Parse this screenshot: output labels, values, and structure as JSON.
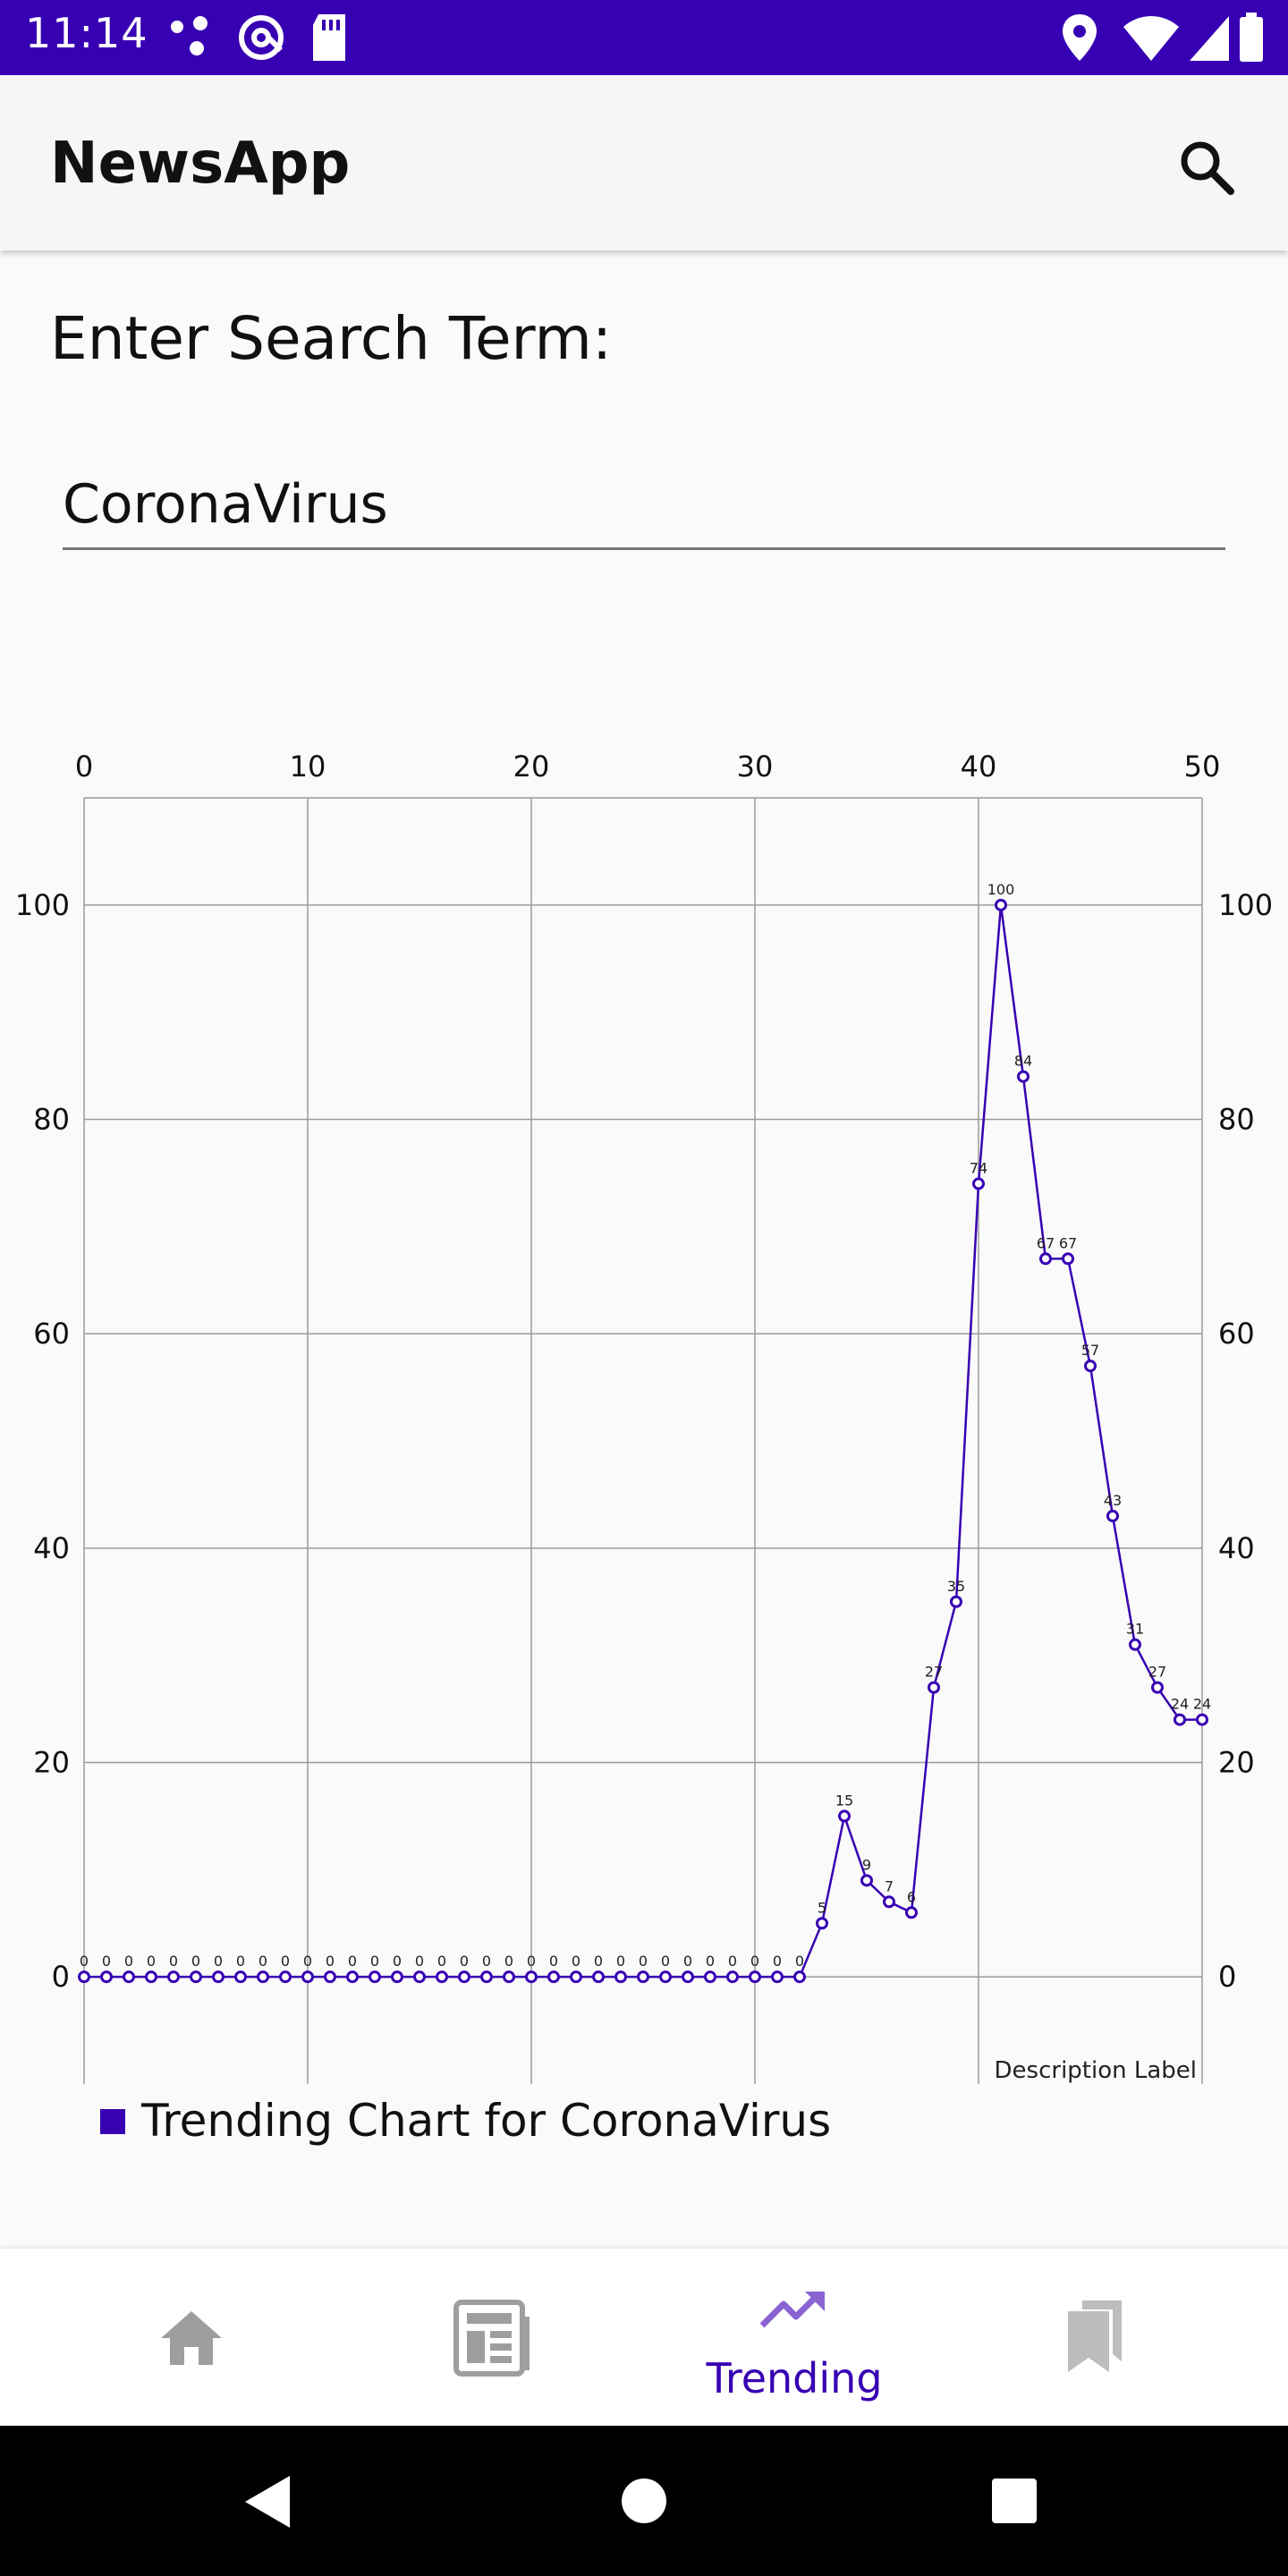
{
  "status_bar": {
    "time": "11:14",
    "left_icons": [
      "dots-icon",
      "at-sign-icon",
      "sd-card-icon"
    ],
    "right_icons": [
      "location-icon",
      "wifi-icon",
      "signal-icon",
      "battery-icon"
    ]
  },
  "app_bar": {
    "title": "NewsApp",
    "search_icon": "search-icon"
  },
  "search": {
    "prompt": "Enter Search Term:",
    "value": "CoronaVirus"
  },
  "chart_data": {
    "type": "line",
    "x": [
      0,
      1,
      2,
      3,
      4,
      5,
      6,
      7,
      8,
      9,
      10,
      11,
      12,
      13,
      14,
      15,
      16,
      17,
      18,
      19,
      20,
      21,
      22,
      23,
      24,
      25,
      26,
      27,
      28,
      29,
      30,
      31,
      32,
      33,
      34,
      35,
      36,
      37,
      38,
      39,
      40,
      41,
      42,
      43,
      44,
      45,
      46,
      47,
      48,
      49,
      50
    ],
    "series": [
      {
        "name": "Trending Chart for CoronaVirus",
        "values": [
          0,
          0,
          0,
          0,
          0,
          0,
          0,
          0,
          0,
          0,
          0,
          0,
          0,
          0,
          0,
          0,
          0,
          0,
          0,
          0,
          0,
          0,
          0,
          0,
          0,
          0,
          0,
          0,
          0,
          0,
          0,
          0,
          0,
          5,
          15,
          9,
          7,
          6,
          27,
          35,
          74,
          100,
          84,
          67,
          67,
          57,
          43,
          31,
          27,
          24,
          24
        ]
      }
    ],
    "x_ticks": [
      0,
      10,
      20,
      30,
      40,
      50
    ],
    "y_ticks": [
      0,
      20,
      40,
      60,
      80,
      100
    ],
    "xlim": [
      0,
      50
    ],
    "ylim": [
      -10,
      110
    ],
    "x_axis_position": "top",
    "y_axis": "left and right",
    "grid": true,
    "description": "Description Label",
    "legend": "bottom-left",
    "color": "#3700b3"
  },
  "bottom_nav": {
    "items": [
      {
        "icon": "home-icon",
        "label": ""
      },
      {
        "icon": "newspaper-icon",
        "label": ""
      },
      {
        "icon": "trending-up-icon",
        "label": "Trending",
        "active": true
      },
      {
        "icon": "bookmarks-icon",
        "label": ""
      }
    ],
    "active_color": "#3700b3",
    "inactive_color": "#9e9e9e"
  },
  "system_nav": {
    "buttons": [
      "back-icon",
      "home-circle-icon",
      "recents-icon"
    ]
  }
}
